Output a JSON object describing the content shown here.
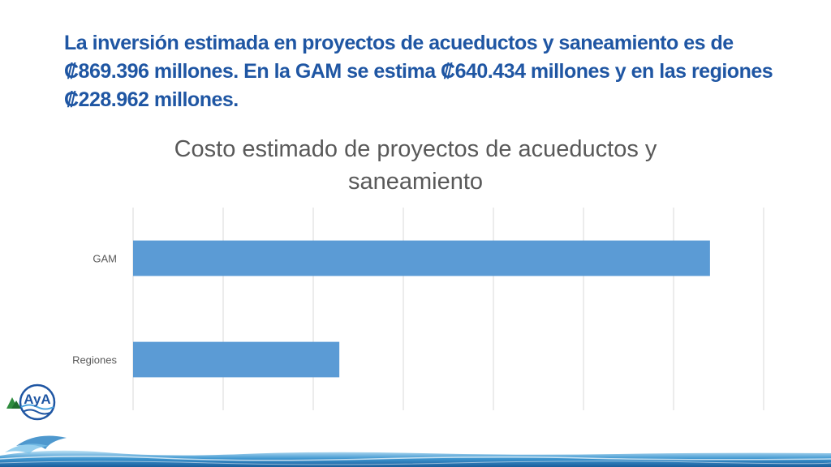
{
  "slide": {
    "headline": "La inversión estimada en proyectos de acueductos y saneamiento es de ₡869.396 millones. En la GAM se estima ₡640.434 millones y en las regiones ₡228.962 millones.",
    "logo_text": "AyA"
  },
  "colors": {
    "headline": "#1f56a3",
    "bar": "#5b9bd5",
    "grid": "#d9d9d9",
    "text": "#595959"
  },
  "chart_data": {
    "type": "bar",
    "orientation": "horizontal",
    "title": "Costo estimado de proyectos de acueductos y saneamiento",
    "categories": [
      "GAM",
      "Regiones"
    ],
    "values": [
      640.434,
      228.962
    ],
    "xlim": [
      0,
      700
    ],
    "grid": true,
    "xlabel": "",
    "ylabel": ""
  }
}
